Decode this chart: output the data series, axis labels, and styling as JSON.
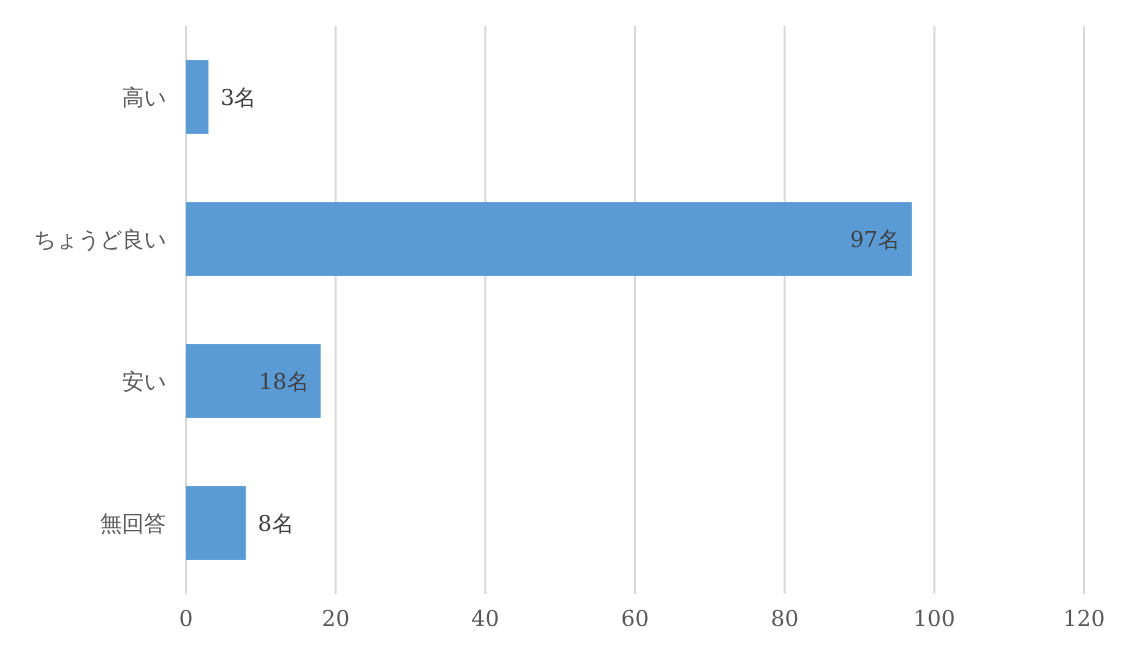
{
  "chart_data": {
    "type": "bar",
    "orientation": "horizontal",
    "categories": [
      "高い",
      "ちょうど良い",
      "安い",
      "無回答"
    ],
    "values": [
      3,
      97,
      18,
      8
    ],
    "value_labels": [
      "3名",
      "97名",
      "18名",
      "8名"
    ],
    "color": "#5b9bd5",
    "xlim": [
      0,
      120
    ],
    "xticks": [
      0,
      20,
      40,
      60,
      80,
      100,
      120
    ],
    "grid": "x"
  }
}
